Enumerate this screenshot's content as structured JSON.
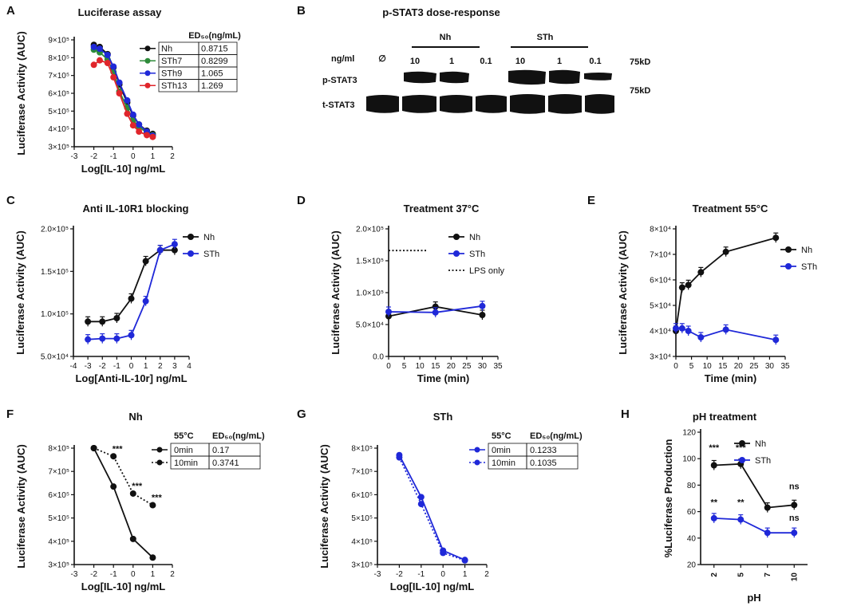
{
  "colors": {
    "black": "#111111",
    "blue": "#1f28d8",
    "green": "#2e8b3a",
    "red": "#e0252b",
    "grey": "#333333"
  },
  "chart_data": [
    {
      "panel": "A",
      "type": "line",
      "title": "Luciferase assay",
      "xlabel": "Log[IL-10] ng/mL",
      "ylabel": "Luciferase Activity (AUC)",
      "xlim": [
        -3,
        2
      ],
      "ylim": [
        300000,
        900000
      ],
      "xticks": [
        -3,
        -2,
        -1,
        0,
        1,
        2
      ],
      "yticks": [
        300000,
        400000,
        500000,
        600000,
        700000,
        800000,
        900000
      ],
      "yticklabels": [
        "3×10⁵",
        "4×10⁵",
        "5×10⁵",
        "6×10⁵",
        "7×10⁵",
        "8×10⁵",
        "9×10⁵"
      ],
      "series": [
        {
          "name": "Nh",
          "color": "#111111",
          "style": "solid",
          "x": [
            -2,
            -1.7,
            -1.3,
            -1,
            -0.7,
            -0.3,
            0,
            0.3,
            0.7,
            1
          ],
          "y": [
            872000,
            860000,
            820000,
            745000,
            650000,
            548000,
            475000,
            425000,
            390000,
            372000
          ]
        },
        {
          "name": "STh7",
          "color": "#2e8b3a",
          "style": "solid",
          "x": [
            -2,
            -1.7,
            -1.3,
            -1,
            -0.7,
            -0.3,
            0,
            0.3,
            0.7,
            1
          ],
          "y": [
            845000,
            830000,
            790000,
            720000,
            610000,
            520000,
            450000,
            410000,
            380000,
            365000
          ]
        },
        {
          "name": "STh9",
          "color": "#1f28d8",
          "style": "solid",
          "x": [
            -2,
            -1.7,
            -1.3,
            -1,
            -0.7,
            -0.3,
            0,
            0.3,
            0.7,
            1
          ],
          "y": [
            860000,
            850000,
            815000,
            750000,
            660000,
            560000,
            480000,
            425000,
            385000,
            362000
          ]
        },
        {
          "name": "STh13",
          "color": "#e0252b",
          "style": "solid",
          "x": [
            -2,
            -1.7,
            -1.3,
            -1,
            -0.7,
            -0.3,
            0,
            0.3,
            0.7,
            1
          ],
          "y": [
            760000,
            785000,
            770000,
            690000,
            600000,
            485000,
            420000,
            385000,
            365000,
            355000
          ]
        }
      ],
      "legend_table": {
        "header": "ED₅₀(ng/mL)",
        "rows": [
          [
            "Nh",
            "0.8715"
          ],
          [
            "STh7",
            "0.8299"
          ],
          [
            "STh9",
            "1.065"
          ],
          [
            "STh13",
            "1.269"
          ]
        ]
      }
    },
    {
      "panel": "C",
      "type": "line",
      "title": "Anti IL-10R1 blocking",
      "xlabel": "Log[Anti-IL-10r] ng/mL",
      "ylabel": "Luciferase Activity (AUC)",
      "xlim": [
        -4,
        4
      ],
      "ylim": [
        50000,
        200000
      ],
      "xticks": [
        -4,
        -3,
        -2,
        -1,
        0,
        1,
        2,
        3,
        4
      ],
      "yticks": [
        50000,
        100000,
        150000,
        200000
      ],
      "yticklabels": [
        "5.0×10⁴",
        "1.0×10⁵",
        "1.5×10⁵",
        "2.0×10⁵"
      ],
      "series": [
        {
          "name": "Nh",
          "color": "#111111",
          "style": "solid",
          "x": [
            -3,
            -2,
            -1,
            0,
            1,
            2,
            3
          ],
          "y": [
            91000,
            91000,
            95000,
            118000,
            162000,
            175000,
            175000
          ]
        },
        {
          "name": "STh",
          "color": "#1f28d8",
          "style": "solid",
          "x": [
            -3,
            -2,
            -1,
            0,
            1,
            2,
            3
          ],
          "y": [
            70000,
            71000,
            71000,
            75000,
            115000,
            175000,
            182000
          ]
        }
      ]
    },
    {
      "panel": "D",
      "type": "line",
      "title": "Treatment 37°C",
      "xlabel": "Time (min)",
      "ylabel": "Luciferase Activity (AUC)",
      "xlim": [
        0,
        35
      ],
      "ylim": [
        0,
        200000
      ],
      "xticks": [
        0,
        5,
        10,
        15,
        20,
        25,
        30,
        35
      ],
      "yticks": [
        0,
        50000,
        100000,
        150000,
        200000
      ],
      "yticklabels": [
        "0.0",
        "5.0×10⁴",
        "1.0×10⁵",
        "1.5×10⁵",
        "2.0×10⁵"
      ],
      "series": [
        {
          "name": "Nh",
          "color": "#111111",
          "style": "solid",
          "x": [
            0,
            15,
            30
          ],
          "y": [
            63000,
            78000,
            65000
          ]
        },
        {
          "name": "STh",
          "color": "#1f28d8",
          "style": "solid",
          "x": [
            0,
            15,
            30
          ],
          "y": [
            70000,
            69000,
            79000
          ]
        },
        {
          "name": "LPS only",
          "color": "#111111",
          "style": "dotted",
          "x": [
            0,
            12
          ],
          "y": [
            166000,
            166000
          ]
        }
      ]
    },
    {
      "panel": "E",
      "type": "line",
      "title": "Treatment 55°C",
      "xlabel": "Time (min)",
      "ylabel": "Luciferase Activity (AUC)",
      "xlim": [
        0,
        35
      ],
      "ylim": [
        30000,
        80000
      ],
      "xticks": [
        0,
        5,
        10,
        15,
        20,
        25,
        30,
        35
      ],
      "yticks": [
        30000,
        40000,
        50000,
        60000,
        70000,
        80000
      ],
      "yticklabels": [
        "3×10⁴",
        "4×10⁴",
        "5×10⁴",
        "6×10⁴",
        "7×10⁴",
        "8×10⁴"
      ],
      "series": [
        {
          "name": "Nh",
          "color": "#111111",
          "style": "solid",
          "x": [
            0,
            2,
            4,
            8,
            16,
            32
          ],
          "y": [
            40000,
            57000,
            58000,
            63000,
            71000,
            76500
          ]
        },
        {
          "name": "STh",
          "color": "#1f28d8",
          "style": "solid",
          "x": [
            0,
            2,
            4,
            8,
            16,
            32
          ],
          "y": [
            41000,
            41000,
            40000,
            37500,
            40500,
            36500
          ]
        }
      ]
    },
    {
      "panel": "F",
      "type": "line",
      "title": "Nh",
      "xlabel": "Log[IL-10] ng/mL",
      "ylabel": "Luciferase Activity (AUC)",
      "xlim": [
        -3,
        2
      ],
      "ylim": [
        300000,
        800000
      ],
      "xticks": [
        -3,
        -2,
        -1,
        0,
        1,
        2
      ],
      "yticks": [
        300000,
        400000,
        500000,
        600000,
        700000,
        800000
      ],
      "yticklabels": [
        "3×10⁵",
        "4×10⁵",
        "5×10⁵",
        "6×10⁵",
        "7×10⁵",
        "8×10⁵"
      ],
      "series": [
        {
          "name": "0min",
          "color": "#111111",
          "style": "solid",
          "x": [
            -2,
            -1,
            0,
            1
          ],
          "y": [
            800000,
            635000,
            410000,
            330000
          ]
        },
        {
          "name": "10min",
          "color": "#111111",
          "style": "dotted",
          "x": [
            -2,
            -1,
            0,
            1
          ],
          "y": [
            800000,
            765000,
            605000,
            555000
          ]
        }
      ],
      "legend_table": {
        "header_left": "55°C",
        "header": "ED₅₀(ng/mL)",
        "rows": [
          [
            "0min",
            "0.17"
          ],
          [
            "10min",
            "0.3741"
          ]
        ]
      },
      "annotations": [
        {
          "x": -0.8,
          "y": 785000,
          "text": "***"
        },
        {
          "x": 0.2,
          "y": 625000,
          "text": "***"
        },
        {
          "x": 1.2,
          "y": 575000,
          "text": "***"
        }
      ]
    },
    {
      "panel": "G",
      "type": "line",
      "title": "STh",
      "xlabel": "Log[IL-10] ng/mL",
      "ylabel": "Luciferase Activity (AUC)",
      "xlim": [
        -3,
        2
      ],
      "ylim": [
        300000,
        800000
      ],
      "xticks": [
        -3,
        -2,
        -1,
        0,
        1,
        2
      ],
      "yticks": [
        300000,
        400000,
        500000,
        600000,
        700000,
        800000
      ],
      "yticklabels": [
        "3×10⁵",
        "4×10⁵",
        "5×10⁵",
        "6×10⁵",
        "7×10⁵",
        "8×10⁵"
      ],
      "series": [
        {
          "name": "0min",
          "color": "#1f28d8",
          "style": "solid",
          "x": [
            -2,
            -1,
            0,
            1
          ],
          "y": [
            770000,
            590000,
            360000,
            320000
          ]
        },
        {
          "name": "10min",
          "color": "#1f28d8",
          "style": "dotted",
          "x": [
            -2,
            -1,
            0,
            1
          ],
          "y": [
            760000,
            560000,
            350000,
            318000
          ]
        }
      ],
      "legend_table": {
        "header_left": "55°C",
        "header": "ED₅₀(ng/mL)",
        "rows": [
          [
            "0min",
            "0.1233"
          ],
          [
            "10min",
            "0.1035"
          ]
        ]
      }
    },
    {
      "panel": "H",
      "type": "line",
      "title": "pH treatment",
      "xlabel": "pH",
      "ylabel": "%Luciferase Production",
      "categories": [
        "2",
        "5",
        "7",
        "10"
      ],
      "ylim": [
        20,
        120
      ],
      "yticks": [
        20,
        40,
        60,
        80,
        100,
        120
      ],
      "series": [
        {
          "name": "Nh",
          "color": "#111111",
          "style": "solid",
          "values": [
            95,
            96,
            63,
            65
          ]
        },
        {
          "name": "STh",
          "color": "#1f28d8",
          "style": "solid",
          "values": [
            55,
            54,
            44,
            44
          ]
        }
      ],
      "annotations": [
        {
          "cat": 0,
          "y": 106,
          "text": "***"
        },
        {
          "cat": 1,
          "y": 106,
          "text": "***"
        },
        {
          "cat": 3,
          "y": 77,
          "text": "ns"
        },
        {
          "cat": 0,
          "y": 65,
          "text": "**"
        },
        {
          "cat": 1,
          "y": 65,
          "text": "**"
        },
        {
          "cat": 3,
          "y": 53,
          "text": "ns"
        }
      ]
    }
  ],
  "blot": {
    "panel": "B",
    "title": "p-STAT3 dose-response",
    "groups": [
      "Nh",
      "STh"
    ],
    "unit_label": "ng/ml",
    "empty_symbol": "∅",
    "lane_labels": [
      "10",
      "1",
      "0.1",
      "10",
      "1",
      "0.1"
    ],
    "row_labels": [
      "p-STAT3",
      "t-STAT3"
    ],
    "kd_labels": [
      "75kD",
      "75kD"
    ]
  }
}
